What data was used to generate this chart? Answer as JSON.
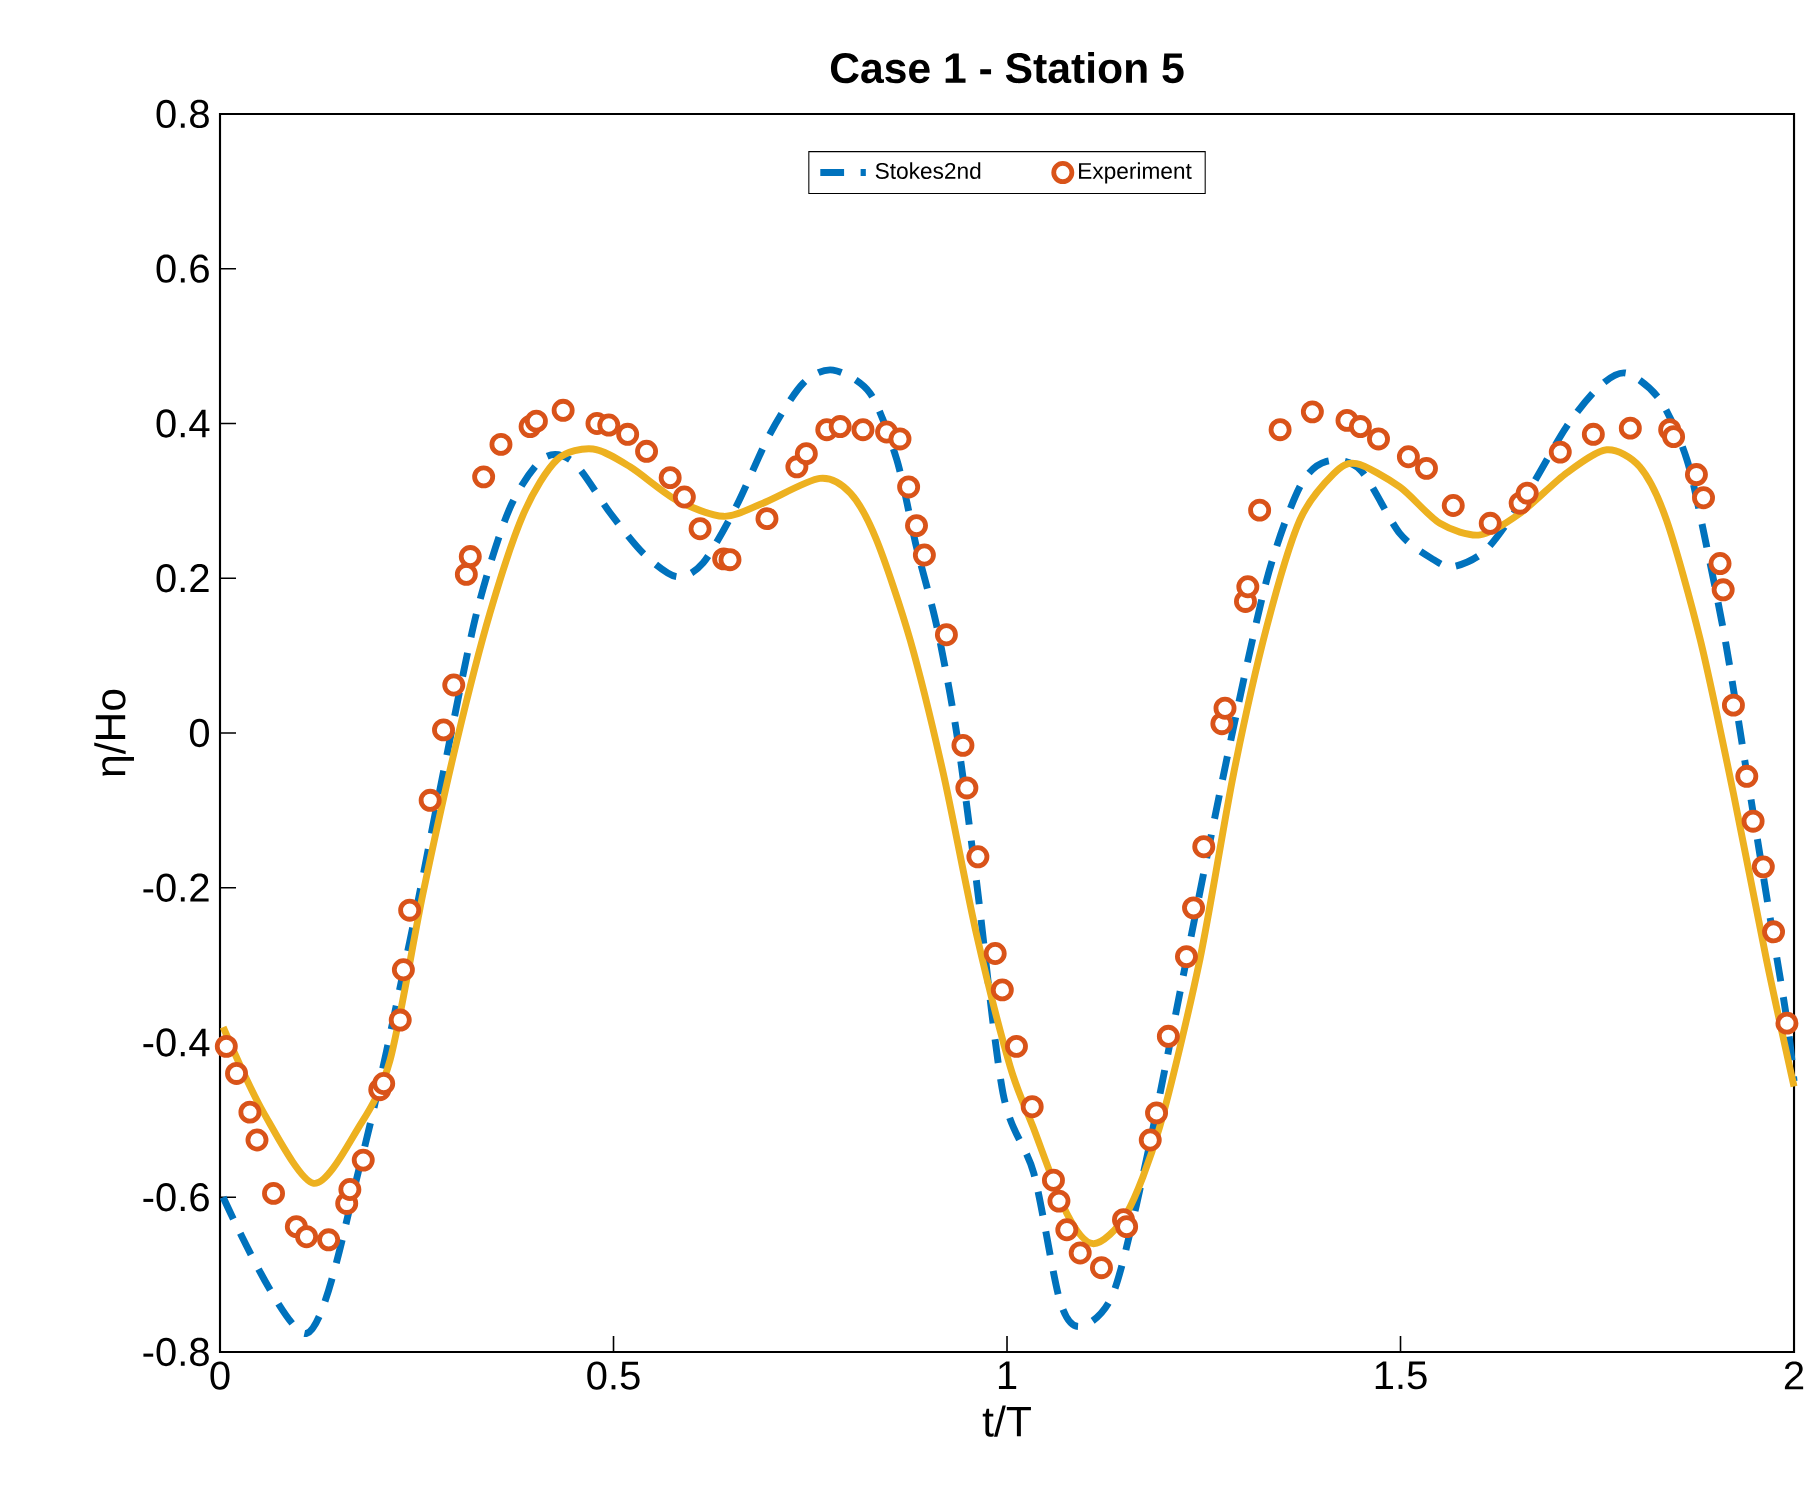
{
  "chart_data": {
    "type": "line",
    "title": "Case 1 - Station 5",
    "xlabel": "t/T",
    "ylabel": "η/Ho",
    "xlim": [
      0,
      2
    ],
    "ylim": [
      -0.8,
      0.8
    ],
    "xticks": [
      0,
      0.5,
      1,
      1.5,
      2
    ],
    "yticks": [
      -0.8,
      -0.6,
      -0.4,
      -0.2,
      0,
      0.2,
      0.4,
      0.6,
      0.8
    ],
    "legend": "top",
    "series": [
      {
        "name": "Stokes2nd",
        "color": "#0072bd",
        "line_style": "dashed",
        "marker": "none",
        "x": [
          0.004,
          0.11,
          0.18,
          0.241,
          0.284,
          0.326,
          0.368,
          0.411,
          0.449,
          0.496,
          0.538,
          0.58,
          0.614,
          0.656,
          0.699,
          0.741,
          0.779,
          0.826,
          0.86,
          0.885,
          0.911,
          0.936,
          0.961,
          0.995,
          1.034,
          1.067,
          1.093,
          1.135,
          1.177,
          1.228,
          1.279,
          1.33,
          1.372,
          1.406,
          1.449,
          1.499,
          1.542,
          1.567,
          1.609,
          1.661,
          1.711,
          1.753,
          1.787,
          1.83,
          1.864,
          1.889,
          1.914,
          1.94,
          1.965,
          1.991,
          2.0
        ],
        "values": [
          -0.6,
          -0.776,
          -0.55,
          -0.27,
          -0.05,
          0.155,
          0.29,
          0.355,
          0.35,
          0.284,
          0.232,
          0.202,
          0.22,
          0.293,
          0.387,
          0.452,
          0.469,
          0.439,
          0.353,
          0.24,
          0.137,
          0.0,
          -0.19,
          -0.466,
          -0.569,
          -0.733,
          -0.767,
          -0.724,
          -0.552,
          -0.293,
          -0.035,
          0.198,
          0.318,
          0.351,
          0.34,
          0.258,
          0.224,
          0.215,
          0.237,
          0.31,
          0.396,
          0.448,
          0.465,
          0.43,
          0.353,
          0.241,
          0.112,
          -0.052,
          -0.21,
          -0.371,
          -0.45
        ]
      },
      {
        "name": "Experiment",
        "type": "scatter",
        "color": "#d95319",
        "marker": "circle",
        "x": [
          0.008,
          0.021,
          0.038,
          0.047,
          0.068,
          0.097,
          0.11,
          0.138,
          0.161,
          0.165,
          0.182,
          0.203,
          0.208,
          0.229,
          0.233,
          0.241,
          0.267,
          0.284,
          0.297,
          0.313,
          0.318,
          0.335,
          0.357,
          0.394,
          0.402,
          0.436,
          0.479,
          0.494,
          0.518,
          0.542,
          0.572,
          0.59,
          0.61,
          0.64,
          0.648,
          0.695,
          0.733,
          0.745,
          0.771,
          0.788,
          0.817,
          0.847,
          0.864,
          0.875,
          0.885,
          0.895,
          0.923,
          0.944,
          0.949,
          0.963,
          0.985,
          0.994,
          1.012,
          1.032,
          1.059,
          1.066,
          1.076,
          1.093,
          1.12,
          1.148,
          1.152,
          1.182,
          1.19,
          1.205,
          1.228,
          1.237,
          1.25,
          1.273,
          1.277,
          1.303,
          1.306,
          1.321,
          1.347,
          1.388,
          1.432,
          1.449,
          1.472,
          1.51,
          1.533,
          1.567,
          1.614,
          1.652,
          1.661,
          1.703,
          1.745,
          1.792,
          1.842,
          1.847,
          1.876,
          1.885,
          1.906,
          1.91,
          1.923,
          1.94,
          1.948,
          1.961,
          1.974,
          1.991
        ],
        "values": [
          -0.405,
          -0.44,
          -0.49,
          -0.526,
          -0.595,
          -0.638,
          -0.651,
          -0.655,
          -0.608,
          -0.59,
          -0.552,
          -0.461,
          -0.453,
          -0.371,
          -0.306,
          -0.229,
          -0.087,
          0.004,
          0.062,
          0.205,
          0.228,
          0.331,
          0.373,
          0.396,
          0.403,
          0.417,
          0.4,
          0.398,
          0.386,
          0.364,
          0.33,
          0.305,
          0.264,
          0.225,
          0.224,
          0.277,
          0.344,
          0.361,
          0.392,
          0.396,
          0.392,
          0.389,
          0.38,
          0.318,
          0.268,
          0.23,
          0.127,
          -0.016,
          -0.071,
          -0.16,
          -0.285,
          -0.332,
          -0.405,
          -0.483,
          -0.578,
          -0.605,
          -0.642,
          -0.672,
          -0.691,
          -0.629,
          -0.638,
          -0.526,
          -0.491,
          -0.392,
          -0.289,
          -0.226,
          -0.147,
          0.012,
          0.032,
          0.17,
          0.189,
          0.288,
          0.392,
          0.415,
          0.404,
          0.396,
          0.38,
          0.357,
          0.342,
          0.294,
          0.271,
          0.297,
          0.31,
          0.363,
          0.386,
          0.394,
          0.392,
          0.383,
          0.334,
          0.304,
          0.219,
          0.185,
          0.036,
          -0.056,
          -0.114,
          -0.173,
          -0.257,
          -0.375
        ]
      },
      {
        "color": "#edb120",
        "line_style": "solid",
        "marker": "none",
        "x": [
          0.004,
          0.055,
          0.119,
          0.176,
          0.216,
          0.258,
          0.301,
          0.343,
          0.386,
          0.428,
          0.474,
          0.521,
          0.58,
          0.64,
          0.69,
          0.762,
          0.801,
          0.834,
          0.877,
          0.919,
          0.961,
          1.004,
          1.033,
          1.076,
          1.11,
          1.152,
          1.194,
          1.245,
          1.288,
          1.33,
          1.372,
          1.415,
          1.444,
          1.499,
          1.55,
          1.601,
          1.652,
          1.711,
          1.762,
          1.804,
          1.838,
          1.881,
          1.923,
          1.965,
          2.0
        ],
        "values": [
          -0.38,
          -0.49,
          -0.582,
          -0.51,
          -0.423,
          -0.207,
          -0.01,
          0.155,
          0.284,
          0.353,
          0.367,
          0.344,
          0.301,
          0.28,
          0.297,
          0.329,
          0.31,
          0.25,
          0.12,
          -0.052,
          -0.259,
          -0.431,
          -0.509,
          -0.621,
          -0.66,
          -0.621,
          -0.509,
          -0.293,
          -0.052,
          0.137,
          0.275,
          0.335,
          0.348,
          0.318,
          0.271,
          0.256,
          0.284,
          0.336,
          0.366,
          0.344,
          0.275,
          0.12,
          -0.078,
          -0.293,
          -0.457
        ]
      }
    ]
  }
}
